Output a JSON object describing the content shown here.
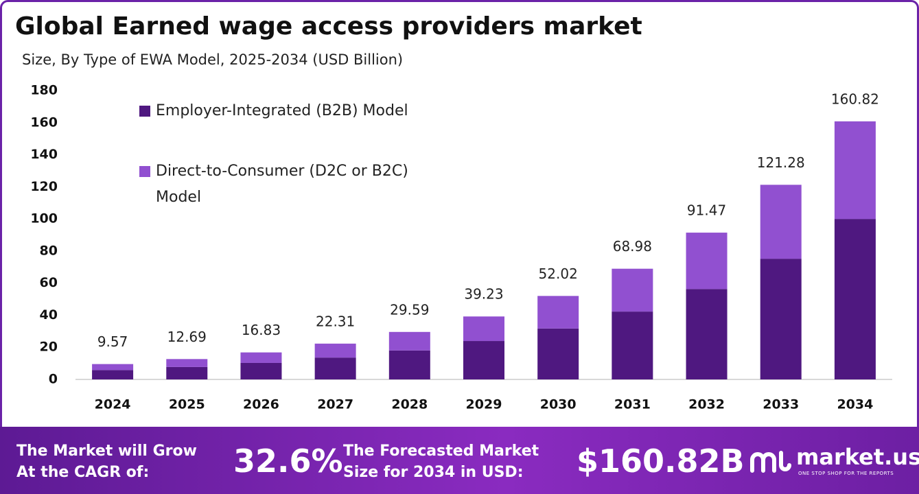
{
  "chart_data": {
    "type": "stacked_bar",
    "title": "Global Earned wage access providers market",
    "subtitle": "Size, By Type of EWA Model, 2025-2034 (USD Billion)",
    "categories": [
      "2024",
      "2025",
      "2026",
      "2027",
      "2028",
      "2029",
      "2030",
      "2031",
      "2032",
      "2033",
      "2034"
    ],
    "series": [
      {
        "name": "Employer-Integrated (B2B) Model",
        "color": "#4f1880",
        "values": [
          5.84,
          7.74,
          10.27,
          13.61,
          18.05,
          23.93,
          31.73,
          42.28,
          56.35,
          75.2,
          100.0
        ]
      },
      {
        "name": "Direct-to-Consumer (D2C or B2C) Model",
        "color": "#9150d0",
        "values": [
          3.73,
          4.95,
          6.56,
          8.7,
          11.54,
          15.3,
          20.29,
          26.7,
          35.12,
          46.08,
          60.82
        ]
      }
    ],
    "totals": [
      9.57,
      12.69,
      16.83,
      22.31,
      29.59,
      39.23,
      52.02,
      68.98,
      91.47,
      121.28,
      160.82
    ],
    "ylim": [
      0,
      180
    ],
    "yticks": [
      0,
      20,
      40,
      60,
      80,
      100,
      120,
      140,
      160,
      180
    ],
    "grid": false
  },
  "footer": {
    "cagr_label": [
      "The Market will Grow",
      "At the CAGR of:"
    ],
    "cagr_value": "32.6%",
    "forecast_label": [
      "The Forecasted Market",
      "Size for 2034 in USD:"
    ],
    "forecast_value": "$160.82B",
    "brand": "market.us",
    "tagline": "ONE STOP SHOP FOR THE REPORTS"
  }
}
